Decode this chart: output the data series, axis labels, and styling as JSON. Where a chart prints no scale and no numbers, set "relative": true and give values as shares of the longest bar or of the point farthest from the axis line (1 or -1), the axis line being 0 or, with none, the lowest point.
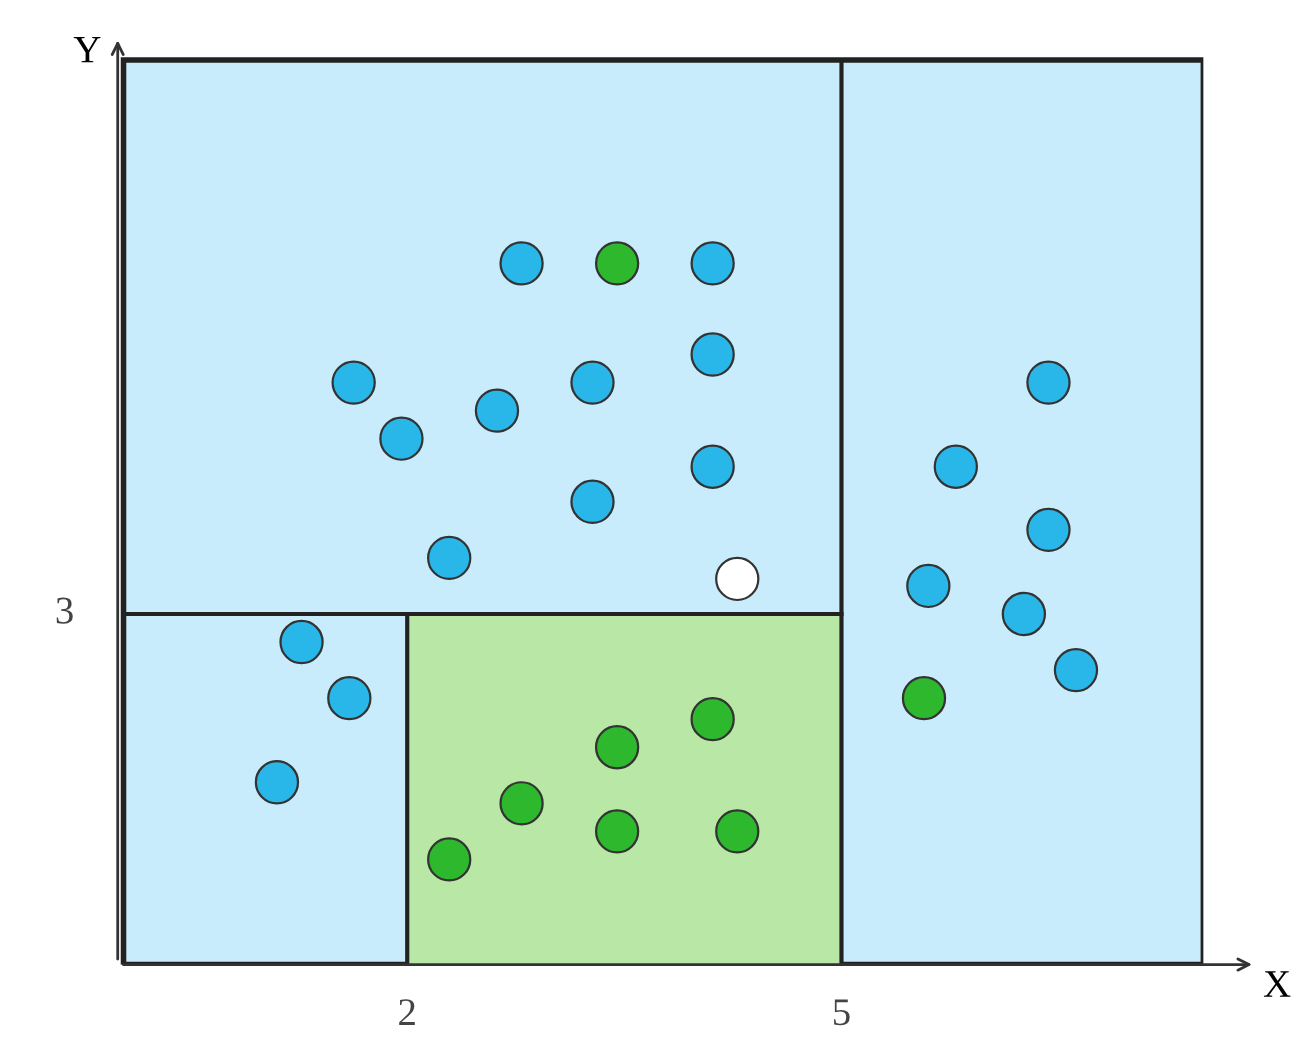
{
  "chart_data": {
    "type": "scatter",
    "xlabel": "X",
    "relative": true,
    "xlim": [
      0,
      7.5
    ],
    "xticks": [
      2,
      5
    ],
    "marker": "circle",
    "grid": false,
    "annotations": [
      "3",
      "Y"
    ],
    "bands": [
      {
        "axis": "x",
        "from": 0.04,
        "to": 7.5,
        "color": "#c8ecfb"
      }
    ],
    "ref_lines": [
      {
        "axis": "x",
        "value": 2,
        "color": "#222222"
      },
      {
        "axis": "x",
        "value": 5,
        "color": "#222222"
      },
      {
        "axis": "y",
        "value": 0.5,
        "color": "#222222"
      }
    ],
    "series": [
      {
        "color": "#29b6e8",
        "x": [
          2.79,
          4.11,
          1.63,
          3.28,
          4.11,
          1.96,
          2.62,
          4.11,
          3.28,
          2.29,
          1.27,
          1.6,
          1.1,
          6.43,
          5.79,
          6.43,
          5.6,
          6.26,
          6.62
        ],
        "values": [
          1.0,
          1.0,
          0.83,
          0.83,
          0.87,
          0.75,
          0.79,
          0.71,
          0.66,
          0.58,
          0.46,
          0.38,
          0.26,
          0.83,
          0.71,
          0.62,
          0.54,
          0.5,
          0.42
        ]
      },
      {
        "color": "#2eb82e",
        "x": [
          3.45,
          3.45,
          4.11,
          2.79,
          2.29,
          3.45,
          4.28,
          5.57
        ],
        "values": [
          1.0,
          0.31,
          0.35,
          0.23,
          0.15,
          0.19,
          0.19,
          0.38
        ]
      },
      {
        "color": "#ffffff",
        "x": [
          4.28
        ],
        "values": [
          0.55
        ]
      }
    ]
  }
}
